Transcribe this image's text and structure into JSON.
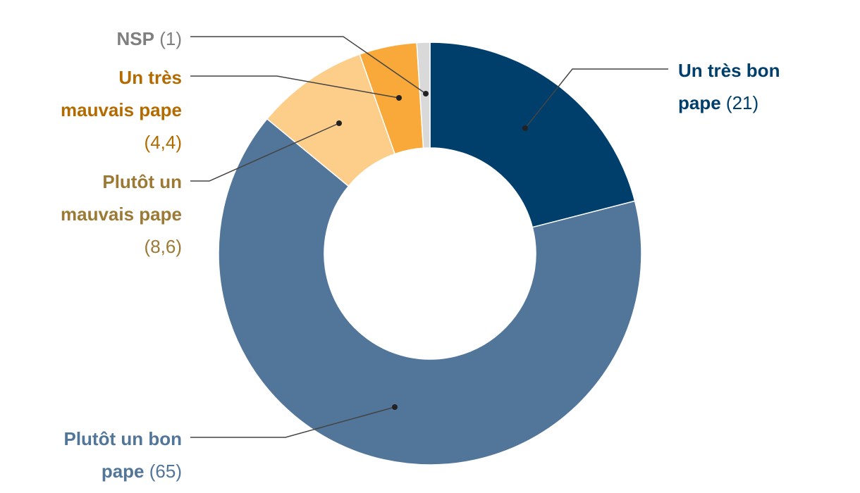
{
  "chart_data": {
    "type": "donut",
    "categories": [
      "Un très bon pape",
      "Plutôt un bon pape",
      "Plutôt un mauvais pape",
      "Un très mauvais pape",
      "NSP"
    ],
    "values": [
      21,
      65,
      8.6,
      4.4,
      1
    ],
    "value_labels": [
      "(21)",
      "(65)",
      "(8,6)",
      "(4,4)",
      "(1)"
    ],
    "colors": [
      "#003f6b",
      "#52759a",
      "#fdcd8a",
      "#f9a93a",
      "#d9d9d9"
    ],
    "label_colors": [
      "#003f6b",
      "#52759a",
      "#9c7a35",
      "#b36b00",
      "#7f7f7f"
    ]
  }
}
